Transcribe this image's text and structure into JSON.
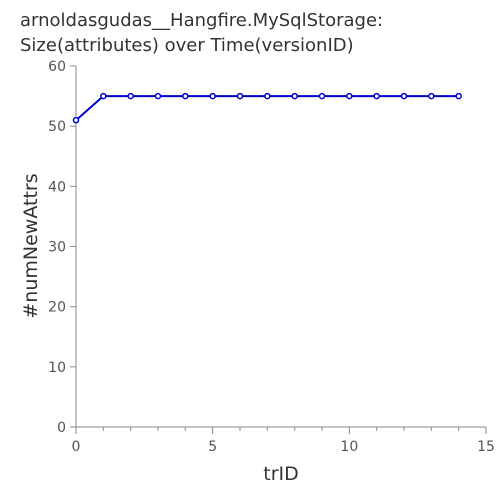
{
  "chart_data": {
    "type": "line",
    "title_line1": "arnoldasgudas__Hangfire.MySqlStorage:",
    "title_line2": "Size(attributes) over Time(versionID)",
    "xlabel": "trID",
    "ylabel": "#numNewAttrs",
    "xlim": [
      0,
      15
    ],
    "ylim": [
      0,
      60
    ],
    "xticks": [
      0,
      5,
      10,
      15
    ],
    "xminor": [
      1,
      2,
      3,
      4,
      6,
      7,
      8,
      9,
      11,
      12,
      13,
      14
    ],
    "yticks": [
      0,
      10,
      20,
      30,
      40,
      50,
      60
    ],
    "grid": false,
    "line_color": "#0000cc",
    "series": [
      {
        "x": [
          0,
          1,
          2,
          3,
          4,
          5,
          6,
          7,
          8,
          9,
          10,
          11,
          12,
          13,
          14
        ],
        "y": [
          51,
          55,
          55,
          55,
          55,
          55,
          55,
          55,
          55,
          55,
          55,
          55,
          55,
          55,
          55
        ]
      }
    ]
  }
}
